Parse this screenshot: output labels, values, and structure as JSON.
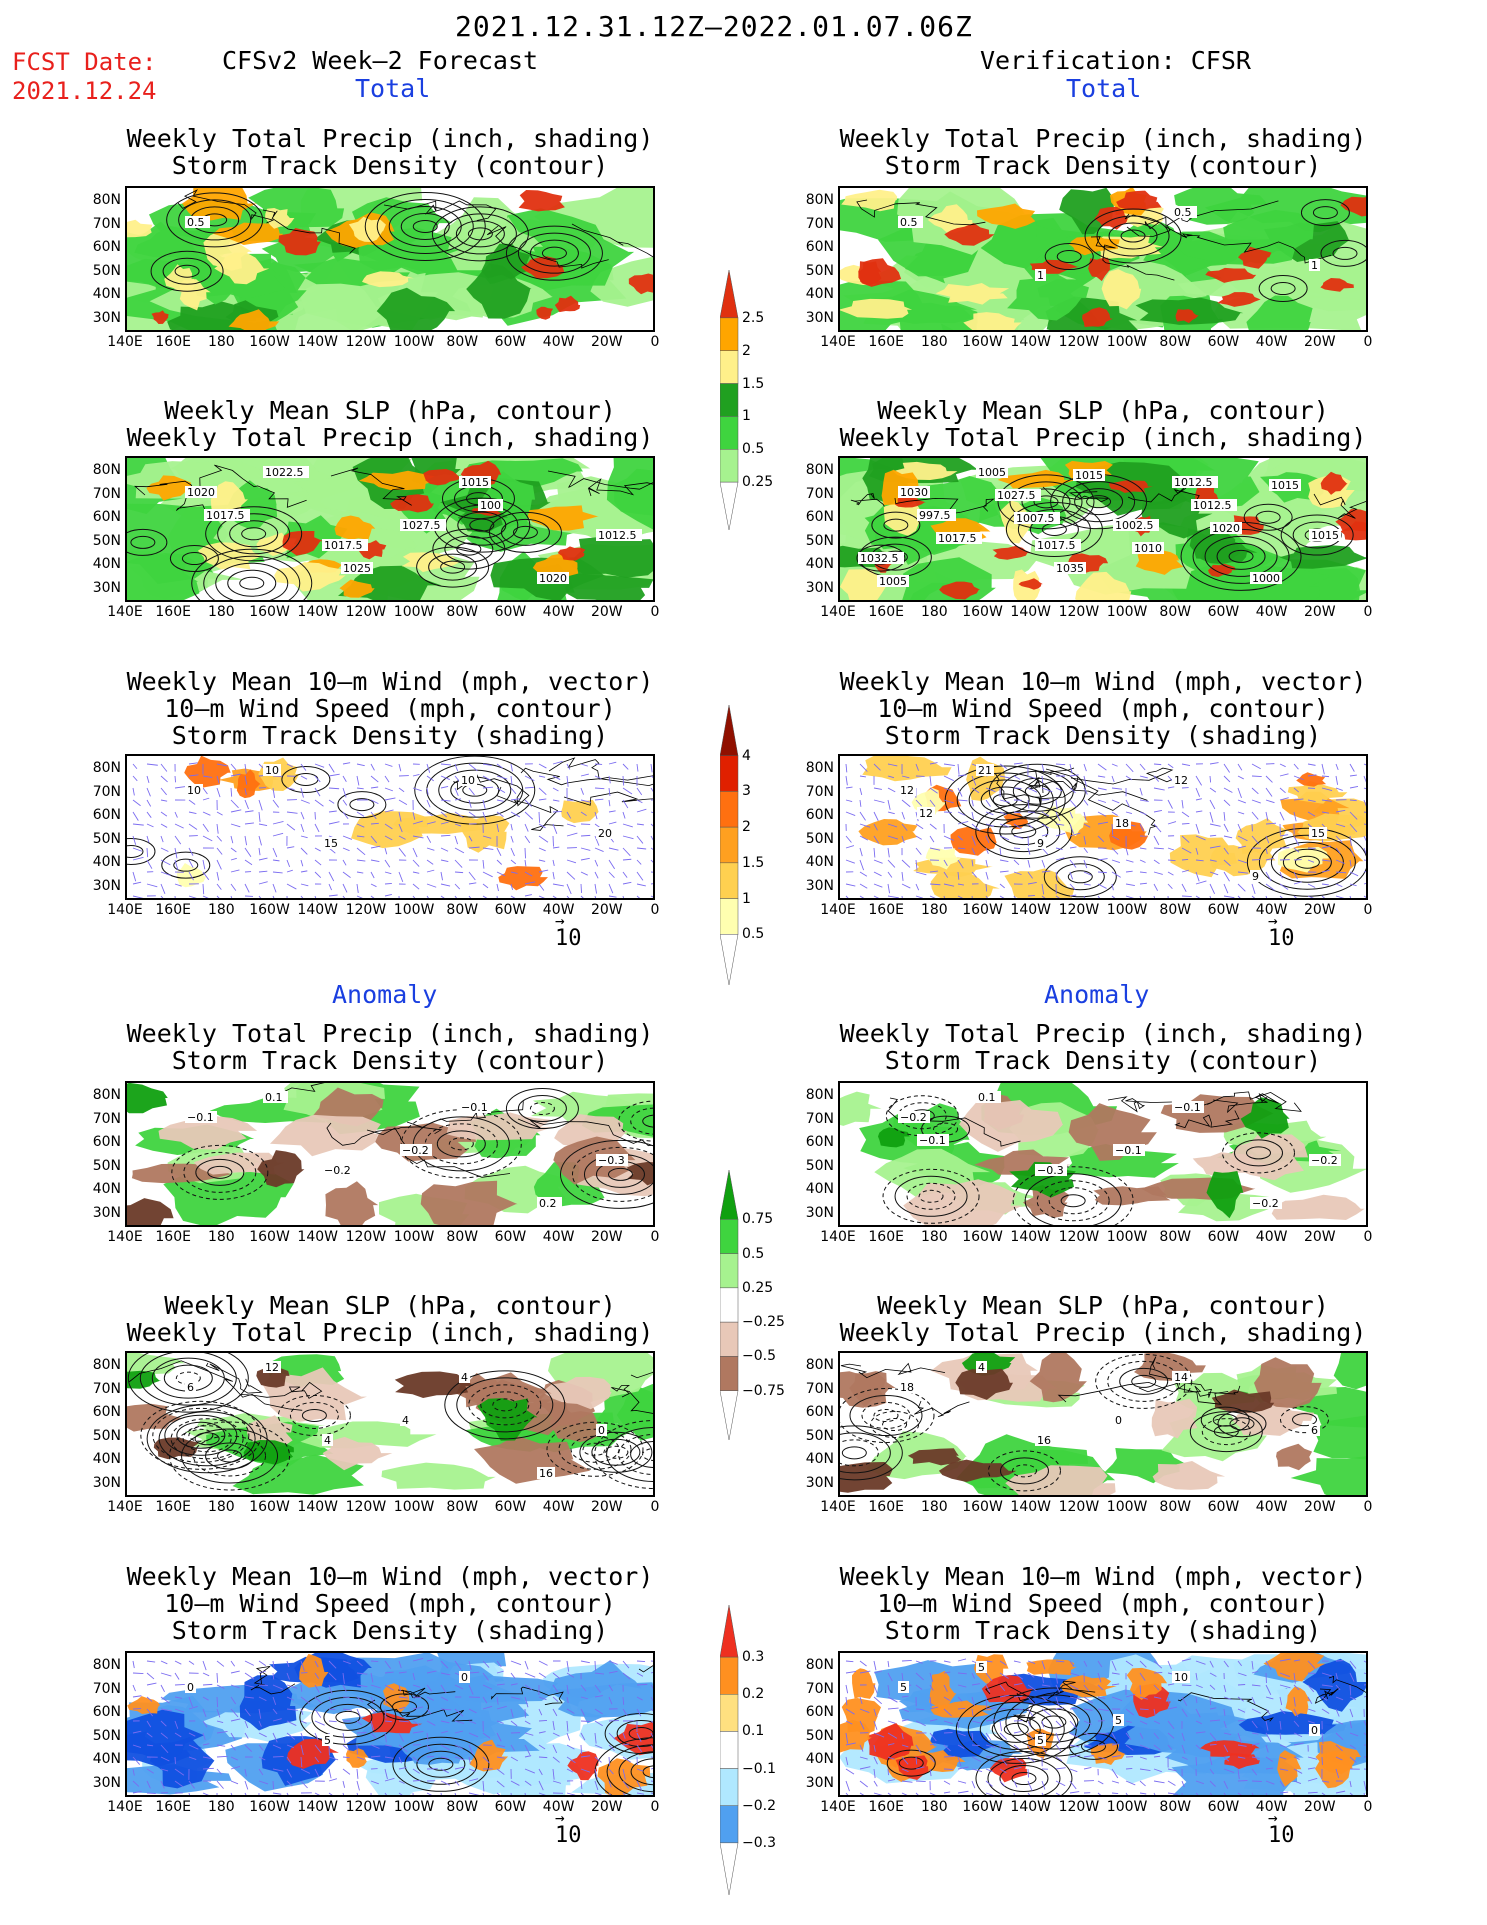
{
  "title": "2021.12.31.12Z—2022.01.07.06Z",
  "fcst_label": "FCST Date:",
  "fcst_date": "2021.12.24",
  "left_header": "CFSv2 Week—2 Forecast",
  "right_header": "Verification: CFSR",
  "section_total": "Total",
  "section_anomaly": "Anomaly",
  "panel_titles": {
    "precip": [
      "Weekly Total Precip (inch, shading)",
      "Storm Track Density (contour)"
    ],
    "slp": [
      "Weekly Mean SLP (hPa, contour)",
      "Weekly Total Precip (inch, shading)"
    ],
    "wind": [
      "Weekly Mean 10—m Wind (mph, vector)",
      "10—m Wind Speed (mph, contour)",
      "Storm Track Density (shading)"
    ]
  },
  "lat_ticks": [
    "80N",
    "70N",
    "60N",
    "50N",
    "40N",
    "30N"
  ],
  "lon_ticks": [
    "140E",
    "160E",
    "180",
    "160W",
    "140W",
    "120W",
    "100W",
    "80W",
    "60W",
    "40W",
    "20W",
    "0"
  ],
  "vector_ref": "10",
  "colorbars": {
    "precip_total": [
      "0.25",
      "0.5",
      "1",
      "1.5",
      "2",
      "2.5"
    ],
    "std_total": [
      "0.5",
      "1",
      "1.5",
      "2",
      "3",
      "4"
    ],
    "precip_anom": [
      "−0.75",
      "−0.5",
      "−0.25",
      "0.25",
      "0.5",
      "0.75"
    ],
    "std_anom": [
      "−0.3",
      "−0.2",
      "−0.1",
      "0.1",
      "0.2",
      "0.3"
    ]
  },
  "contour_labels": {
    "fcst_precip_total": [
      "0.5"
    ],
    "verif_precip_total": [
      "0.5",
      "1",
      "0.5",
      "1"
    ],
    "fcst_slp_total": [
      "1020",
      "1017.5",
      "1015",
      "1012.5",
      "1022.5",
      "1027.5",
      "1020",
      "1017.5",
      "1025",
      "100"
    ],
    "verif_slp_total": [
      "1030",
      "1017.5",
      "1012.5",
      "1015",
      "1005",
      "1002.5",
      "1000",
      "997.5",
      "1035",
      "1012.5",
      "1032.5",
      "1027.5",
      "1010",
      "1015",
      "1017.5",
      "1015",
      "1020",
      "1005",
      "1007.5"
    ],
    "fcst_wind_total": [
      "10",
      "15",
      "10",
      "20",
      "10"
    ],
    "verif_wind_total": [
      "12",
      "9",
      "12",
      "15",
      "21",
      "18",
      "9",
      "12"
    ],
    "fcst_precip_anom": [
      "−0.1",
      "−0.2",
      "−0.1",
      "−0.3",
      "0.1",
      "−0.2",
      "0.2"
    ],
    "verif_precip_anom": [
      "−0.2",
      "−0.3",
      "−0.1",
      "−0.2",
      "0.1",
      "−0.1",
      "−0.2",
      "−0.1"
    ],
    "fcst_slp_anom": [
      "6",
      "4",
      "4",
      "0",
      "12",
      "4",
      "16"
    ],
    "verif_slp_anom": [
      "18",
      "16",
      "14",
      "6",
      "4",
      "0"
    ],
    "fcst_wind_anom": [
      "0",
      "5",
      "0"
    ],
    "verif_wind_anom": [
      "5",
      "5",
      "10",
      "0",
      "5",
      "5"
    ]
  },
  "colors": {
    "precip": [
      "#a6f28f",
      "#3fd43f",
      "#20a020",
      "#fff08a",
      "#ffa500",
      "#e03010"
    ],
    "std": [
      "#ffffb0",
      "#ffd050",
      "#ffa020",
      "#ff7010",
      "#e02000",
      "#901000"
    ],
    "anom_dry": [
      "#e8c8b8",
      "#b07860",
      "#6a3a28"
    ],
    "anom_wet": [
      "#a6f28f",
      "#3fd43f",
      "#10a010"
    ],
    "std_anom": [
      "#1050e0",
      "#50a0f0",
      "#b0e8ff",
      "#ffe040",
      "#ff9020",
      "#ee3020"
    ],
    "wind_vector": "#7b6cf0"
  },
  "chart_data": {
    "type": "heatmap",
    "description_axes": {
      "x": "longitude",
      "y": "latitude",
      "xlim": [
        "140E",
        "0"
      ],
      "ylim": [
        "25N",
        "85N"
      ]
    }
  }
}
